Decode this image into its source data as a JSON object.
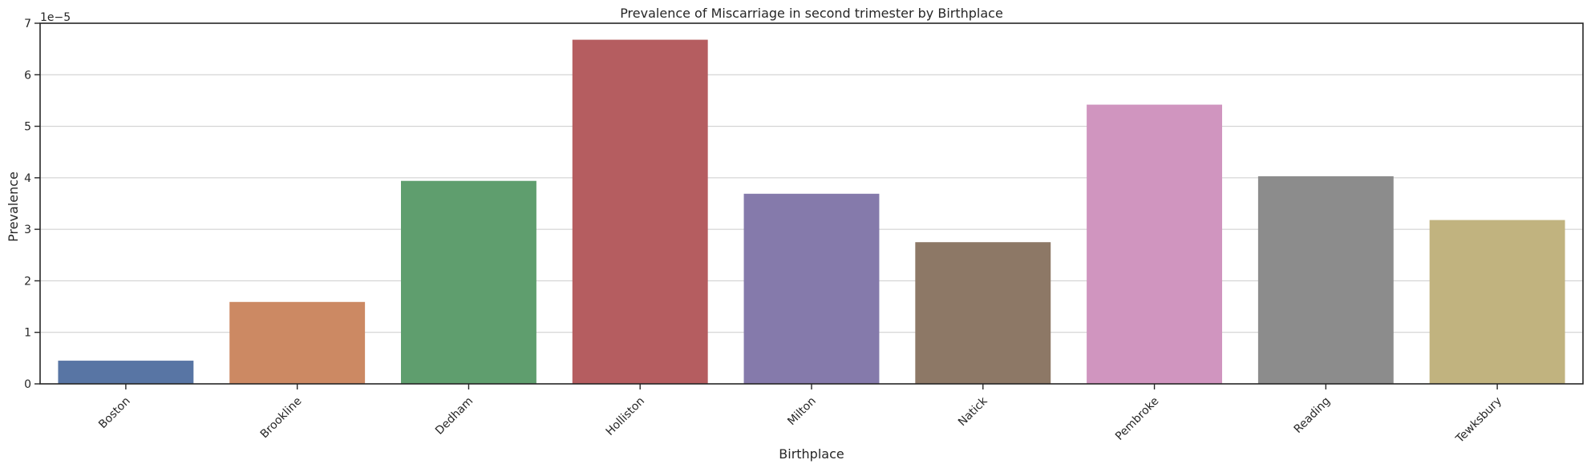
{
  "chart_data": {
    "type": "bar",
    "title": "Prevalence of Miscarriage in second trimester by Birthplace",
    "xlabel": "Birthplace",
    "ylabel": "Prevalence",
    "y_scale_label": "1e−5",
    "y_scale_factor": 1e-05,
    "categories": [
      "Boston",
      "Brookline",
      "Dedham",
      "Holliston",
      "Milton",
      "Natick",
      "Pembroke",
      "Reading",
      "Tewksbury"
    ],
    "values": [
      4.5e-06,
      1.59e-05,
      3.94e-05,
      6.68e-05,
      3.69e-05,
      2.75e-05,
      5.42e-05,
      4.03e-05,
      3.18e-05
    ],
    "colors": [
      "#5875a4",
      "#cc8963",
      "#5f9e6e",
      "#b55d60",
      "#857aab",
      "#8d7866",
      "#d095bf",
      "#8c8c8c",
      "#c1b37f"
    ],
    "ylim": [
      0,
      7e-05
    ],
    "yticks": [
      0,
      1e-05,
      2e-05,
      3e-05,
      4e-05,
      5e-05,
      6e-05,
      7e-05
    ],
    "ytick_labels": [
      "0",
      "1",
      "2",
      "3",
      "4",
      "5",
      "6",
      "7"
    ],
    "grid": "y",
    "legend": "none"
  }
}
